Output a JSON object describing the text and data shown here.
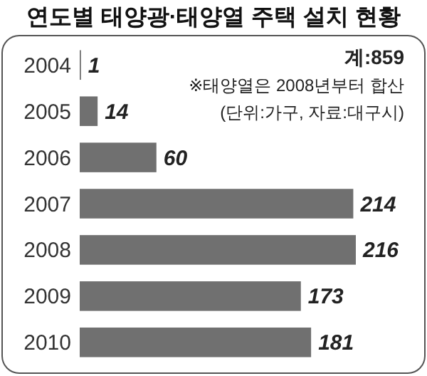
{
  "chart_data": {
    "type": "bar",
    "orientation": "horizontal",
    "title": "연도별 태양광·태양열 주택 설치 현황",
    "categories": [
      "2004",
      "2005",
      "2006",
      "2007",
      "2008",
      "2009",
      "2010"
    ],
    "values": [
      1,
      14,
      60,
      214,
      216,
      173,
      181
    ],
    "color": "#707070",
    "data_labels": true,
    "annotations": [
      "계:859",
      "※태양열은 2008년부터 합산",
      "(단위:가구, 자료:대구시)"
    ]
  }
}
